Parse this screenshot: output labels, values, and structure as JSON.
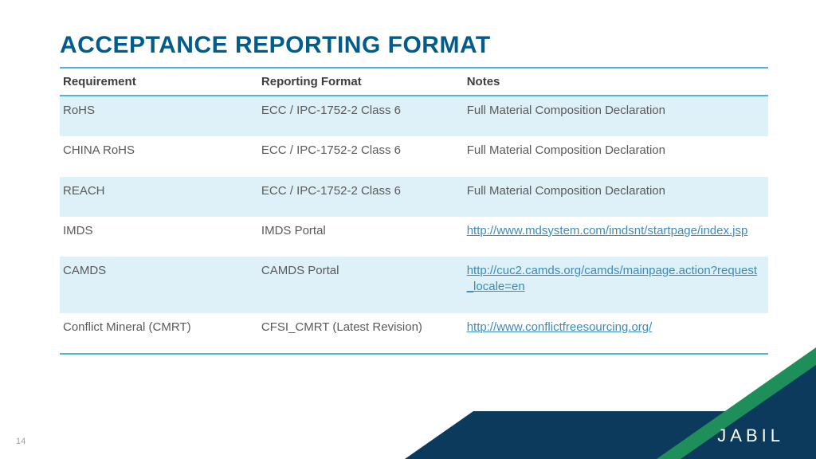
{
  "title": "ACCEPTANCE REPORTING FORMAT",
  "page_number": "14",
  "brand": "JABIL",
  "colors": {
    "title": "#005c8a",
    "rule": "#4bb6d6",
    "shaded_row": "#def0f8",
    "text": "#5a5a5a",
    "header_text": "#3e3e3e",
    "link": "#3b8bbd",
    "footer_blue": "#0b3a5d",
    "footer_green": "#1e8f5b",
    "page_num": "#9e9e9e",
    "background": "#ffffff"
  },
  "table": {
    "columns": [
      "Requirement",
      "Reporting Format",
      "Notes"
    ],
    "col_widths_pct": [
      28,
      29,
      43
    ],
    "rows": [
      {
        "shaded": true,
        "requirement": "RoHS",
        "format": "ECC / IPC-1752-2 Class 6",
        "notes": "Full Material Composition Declaration",
        "is_link": false
      },
      {
        "shaded": false,
        "requirement": "CHINA RoHS",
        "format": "ECC / IPC-1752-2 Class 6",
        "notes": "Full Material Composition Declaration",
        "is_link": false
      },
      {
        "shaded": true,
        "requirement": "REACH",
        "format": "ECC / IPC-1752-2 Class 6",
        "notes": "Full Material Composition Declaration",
        "is_link": false
      },
      {
        "shaded": false,
        "requirement": "IMDS",
        "format": "IMDS Portal",
        "notes": "http://www.mdsystem.com/imdsnt/startpage/index.jsp",
        "is_link": true
      },
      {
        "shaded": true,
        "requirement": "CAMDS",
        "format": "CAMDS Portal",
        "notes": "http://cuc2.camds.org/camds/mainpage.action?request_locale=en",
        "is_link": true
      },
      {
        "shaded": false,
        "requirement": "Conflict Mineral (CMRT)",
        "format": "CFSI_CMRT (Latest Revision)",
        "notes": "http://www.conflictfreesourcing.org/",
        "is_link": true
      }
    ]
  }
}
